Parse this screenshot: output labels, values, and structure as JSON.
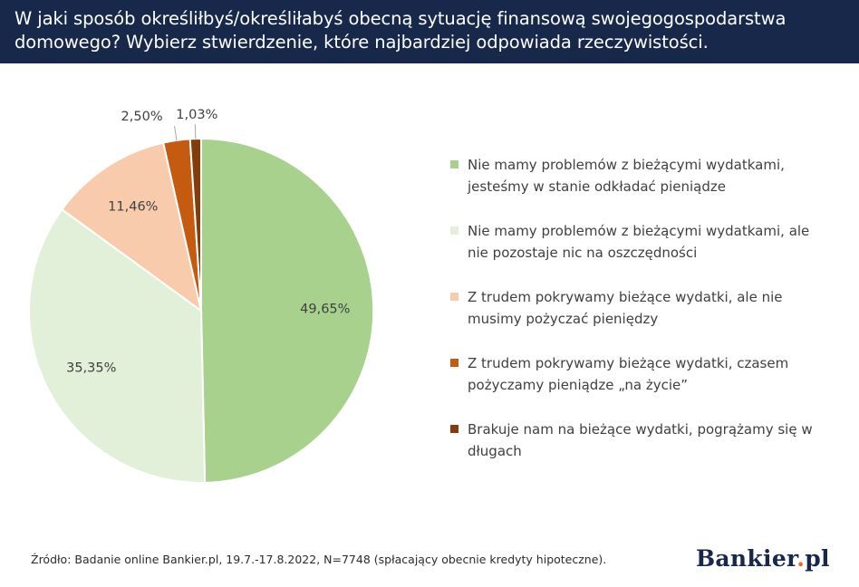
{
  "header": {
    "title": "W jaki sposób określiłbyś/określiłabyś obecną sytuację finansową swojegogospodarstwa domowego? Wybierz stwierdzenie, które najbardziej odpowiada rzeczywistości."
  },
  "chart_data": {
    "type": "pie",
    "title": "W jaki sposób określiłbyś/określiłabyś obecną sytuację finansową swojegogospodarstwa domowego? Wybierz stwierdzenie, które najbardziej odpowiada rzeczywistości.",
    "legend_position": "right",
    "slices": [
      {
        "label": "Nie mamy problemów z bieżącymi wydatkami, jesteśmy w stanie odkładać pieniądze",
        "value": 49.65,
        "value_label": "49,65%",
        "color": "#a9d18e"
      },
      {
        "label": "Nie mamy problemów z bieżącymi wydatkami, ale nie pozostaje nic na oszczędności",
        "value": 35.35,
        "value_label": "35,35%",
        "color": "#e2efd9"
      },
      {
        "label": "Z trudem pokrywamy bieżące wydatki, ale nie musimy pożyczać pieniędzy",
        "value": 11.46,
        "value_label": "11,46%",
        "color": "#f8cbad"
      },
      {
        "label": "Z trudem pokrywamy bieżące wydatki, czasem pożyczamy pieniądze „na życie”",
        "value": 2.5,
        "value_label": "2,50%",
        "color": "#c55a11"
      },
      {
        "label": "Brakuje nam na bieżące wydatki, pogrążamy się w długach",
        "value": 1.03,
        "value_label": "1,03%",
        "color": "#843c0c"
      }
    ]
  },
  "legend": {
    "items": [
      {
        "line1": "Nie mamy problemów z bieżącymi wydatkami,",
        "line2": "jesteśmy w stanie odkładać pieniądze",
        "color": "#a9d18e"
      },
      {
        "line1": "Nie mamy problemów z bieżącymi wydatkami, ale",
        "line2": "nie pozostaje nic na oszczędności",
        "color": "#e2efd9"
      },
      {
        "line1": "Z trudem pokrywamy bieżące wydatki, ale nie",
        "line2": "musimy pożyczać pieniędzy",
        "color": "#f8cbad"
      },
      {
        "line1": "Z trudem pokrywamy bieżące wydatki, czasem",
        "line2": "pożyczamy pieniądze „na życie”",
        "color": "#c55a11"
      },
      {
        "line1": "Brakuje nam na bieżące wydatki, pogrążamy się w",
        "line2": "długach",
        "color": "#843c0c"
      }
    ]
  },
  "footer": {
    "source": "Źródło: Badanie online Bankier.pl, 19.7.-17.8.2022, N=7748 (spłacający obecnie kredyty hipoteczne).",
    "logo_main": "Bankier",
    "logo_dot": ".",
    "logo_tail": "pl"
  }
}
